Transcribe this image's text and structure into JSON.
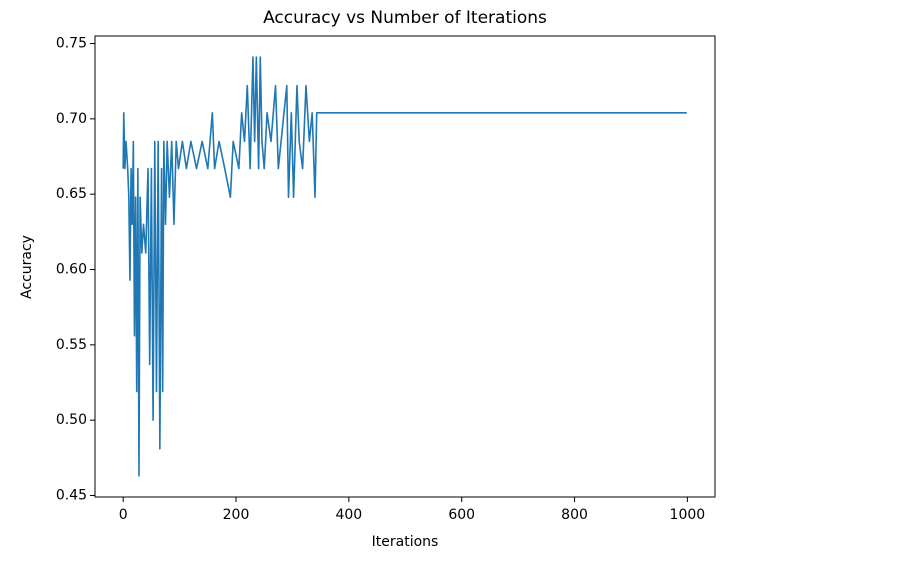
{
  "chart_data": {
    "type": "line",
    "title": "Accuracy vs Number of Iterations",
    "x_label": "Iterations",
    "y_label": "Accuracy",
    "x": [
      0,
      1,
      3,
      5,
      8,
      10,
      12,
      14,
      16,
      18,
      20,
      22,
      24,
      26,
      28,
      30,
      33,
      36,
      40,
      44,
      47,
      50,
      53,
      56,
      59,
      62,
      65,
      68,
      70,
      72,
      75,
      78,
      82,
      86,
      90,
      94,
      98,
      105,
      112,
      120,
      130,
      140,
      150,
      158,
      162,
      170,
      180,
      190,
      195,
      205,
      210,
      215,
      220,
      225,
      230,
      233,
      236,
      240,
      243,
      246,
      250,
      255,
      262,
      270,
      275,
      285,
      290,
      293,
      298,
      302,
      308,
      312,
      318,
      324,
      330,
      335,
      340,
      343,
      345,
      999
    ],
    "series": [
      {
        "name": "Accuracy",
        "color": "#1f77b4",
        "values": [
          0.667,
          0.704,
          0.667,
          0.685,
          0.667,
          0.648,
          0.593,
          0.667,
          0.63,
          0.685,
          0.556,
          0.648,
          0.519,
          0.667,
          0.463,
          0.648,
          0.611,
          0.63,
          0.611,
          0.667,
          0.537,
          0.667,
          0.5,
          0.685,
          0.519,
          0.685,
          0.481,
          0.667,
          0.519,
          0.685,
          0.63,
          0.685,
          0.648,
          0.685,
          0.63,
          0.685,
          0.667,
          0.685,
          0.667,
          0.685,
          0.667,
          0.685,
          0.667,
          0.704,
          0.667,
          0.685,
          0.667,
          0.648,
          0.685,
          0.667,
          0.704,
          0.685,
          0.722,
          0.667,
          0.741,
          0.685,
          0.741,
          0.667,
          0.741,
          0.685,
          0.667,
          0.704,
          0.685,
          0.722,
          0.667,
          0.704,
          0.722,
          0.648,
          0.704,
          0.648,
          0.722,
          0.685,
          0.667,
          0.722,
          0.685,
          0.704,
          0.648,
          0.704,
          0.704,
          0.704
        ]
      }
    ],
    "xlim": [
      -49.95,
      1048.95
    ],
    "xticks": [
      0,
      200,
      400,
      600,
      800,
      1000
    ],
    "ylim": [
      0.449,
      0.755
    ],
    "yticks": [
      0.45,
      {
        "value": 0.5,
        "label": "0.50"
      },
      0.55,
      {
        "value": 0.6,
        "label": "0.60"
      },
      0.65,
      {
        "value": 0.7,
        "label": "0.70"
      },
      0.75
    ]
  }
}
